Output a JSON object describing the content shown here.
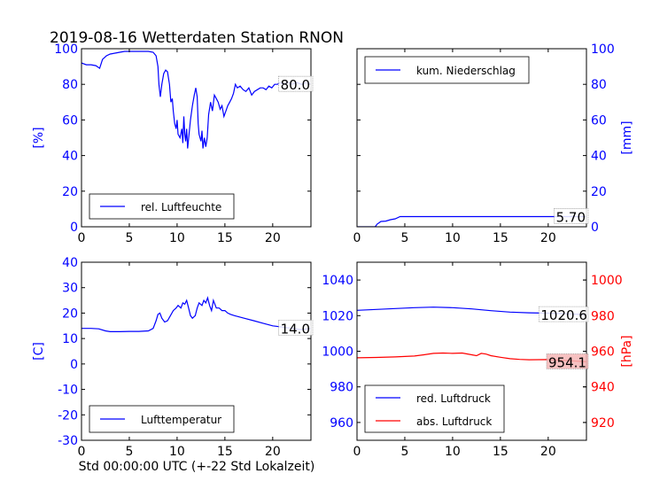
{
  "figure": {
    "title": "2019-08-16 Wetterdaten Station RNON",
    "xlabel": "Std 00:00:00 UTC (+-22 Std Lokalzeit)"
  },
  "colors": {
    "blue": "#0000ff",
    "red": "#ff0000",
    "axes": "#000000",
    "value_box_red": "#f4b6b6"
  },
  "chart_data": [
    {
      "id": "humidity",
      "type": "line",
      "xlim": [
        0,
        24
      ],
      "ylim": [
        0,
        100
      ],
      "xticks": [
        0,
        5,
        10,
        15,
        20
      ],
      "yticks": [
        0,
        20,
        40,
        60,
        80,
        100
      ],
      "ylabel": "[%]",
      "ylabel_side": "left",
      "legend": {
        "placement": "lower-left",
        "entries": [
          "rel. Luftfeuchte"
        ]
      },
      "series": [
        {
          "name": "rel. Luftfeuchte",
          "color": "#0000ff",
          "points": [
            [
              0,
              92
            ],
            [
              0.5,
              91
            ],
            [
              1,
              91
            ],
            [
              1.5,
              90.5
            ],
            [
              1.9,
              89
            ],
            [
              2.2,
              94
            ],
            [
              2.6,
              96
            ],
            [
              3,
              97
            ],
            [
              3.5,
              97.5
            ],
            [
              4,
              98
            ],
            [
              4.5,
              98.5
            ],
            [
              5,
              98.5
            ],
            [
              5.5,
              98.5
            ],
            [
              6,
              98.5
            ],
            [
              6.5,
              98.5
            ],
            [
              7,
              98.5
            ],
            [
              7.5,
              98
            ],
            [
              7.8,
              96
            ],
            [
              8,
              90
            ],
            [
              8.1,
              80
            ],
            [
              8.25,
              73
            ],
            [
              8.4,
              80
            ],
            [
              8.6,
              86
            ],
            [
              8.8,
              88
            ],
            [
              9,
              87
            ],
            [
              9.2,
              80
            ],
            [
              9.35,
              70
            ],
            [
              9.5,
              72
            ],
            [
              9.6,
              65
            ],
            [
              9.75,
              58
            ],
            [
              9.9,
              55
            ],
            [
              10,
              60
            ],
            [
              10.1,
              52
            ],
            [
              10.3,
              50
            ],
            [
              10.5,
              55
            ],
            [
              10.6,
              47
            ],
            [
              10.7,
              62
            ],
            [
              10.8,
              52
            ],
            [
              10.9,
              48
            ],
            [
              11,
              55
            ],
            [
              11.1,
              44
            ],
            [
              11.25,
              52
            ],
            [
              11.4,
              60
            ],
            [
              11.6,
              68
            ],
            [
              11.8,
              74
            ],
            [
              11.95,
              78
            ],
            [
              12.1,
              73
            ],
            [
              12.2,
              58
            ],
            [
              12.3,
              52
            ],
            [
              12.4,
              50
            ],
            [
              12.5,
              48
            ],
            [
              12.6,
              54
            ],
            [
              12.7,
              44
            ],
            [
              12.85,
              50
            ],
            [
              13,
              45
            ],
            [
              13.15,
              50
            ],
            [
              13.3,
              63
            ],
            [
              13.5,
              70
            ],
            [
              13.7,
              65
            ],
            [
              13.9,
              74
            ],
            [
              14.1,
              72
            ],
            [
              14.3,
              70
            ],
            [
              14.5,
              66
            ],
            [
              14.7,
              68
            ],
            [
              14.9,
              62
            ],
            [
              15.1,
              65
            ],
            [
              15.3,
              68
            ],
            [
              15.5,
              70
            ],
            [
              15.7,
              72
            ],
            [
              15.9,
              75
            ],
            [
              16.1,
              80
            ],
            [
              16.3,
              78
            ],
            [
              16.6,
              79
            ],
            [
              16.9,
              77
            ],
            [
              17.2,
              76
            ],
            [
              17.5,
              78
            ],
            [
              17.8,
              74
            ],
            [
              18.1,
              76
            ],
            [
              18.4,
              77
            ],
            [
              18.7,
              78
            ],
            [
              19,
              78
            ],
            [
              19.3,
              77
            ],
            [
              19.6,
              79
            ],
            [
              19.9,
              78
            ],
            [
              20.2,
              80
            ],
            [
              20.5,
              80
            ],
            [
              20.8,
              81
            ],
            [
              21.1,
              80
            ],
            [
              21.4,
              81
            ],
            [
              21.7,
              81
            ],
            [
              22,
              80
            ],
            [
              22.5,
              81
            ],
            [
              23,
              80
            ],
            [
              23.5,
              81
            ],
            [
              24,
              80
            ]
          ]
        }
      ],
      "value_labels": [
        {
          "text": "80.0",
          "y": 80,
          "style": "white"
        }
      ]
    },
    {
      "id": "precip",
      "type": "line",
      "xlim": [
        0,
        24
      ],
      "ylim": [
        0,
        100
      ],
      "xticks": [
        0,
        5,
        10,
        15,
        20
      ],
      "yticks": [
        0,
        20,
        40,
        60,
        80,
        100
      ],
      "ylabel": "[mm]",
      "ylabel_side": "right",
      "legend": {
        "placement": "upper-left",
        "entries": [
          "kum. Niederschlag"
        ]
      },
      "series": [
        {
          "name": "kum. Niederschlag",
          "color": "#0000ff",
          "points": [
            [
              0,
              0
            ],
            [
              1.9,
              0
            ],
            [
              2.1,
              1.5
            ],
            [
              2.5,
              3
            ],
            [
              3,
              3.2
            ],
            [
              3.5,
              4
            ],
            [
              4,
              4.5
            ],
            [
              4.5,
              5.7
            ],
            [
              6,
              5.7
            ],
            [
              10,
              5.7
            ],
            [
              15,
              5.7
            ],
            [
              20,
              5.7
            ],
            [
              24,
              5.7
            ]
          ]
        }
      ],
      "value_labels": [
        {
          "text": "5.70",
          "y": 5.7,
          "style": "white"
        }
      ]
    },
    {
      "id": "temperature",
      "type": "line",
      "xlim": [
        0,
        24
      ],
      "ylim": [
        -30,
        40
      ],
      "xticks": [
        0,
        5,
        10,
        15,
        20
      ],
      "yticks": [
        -30,
        -20,
        -10,
        0,
        10,
        20,
        30,
        40
      ],
      "ylabel": "[C]",
      "ylabel_side": "left",
      "legend": {
        "placement": "lower-left",
        "entries": [
          "Lufttemperatur"
        ]
      },
      "series": [
        {
          "name": "Lufttemperatur",
          "color": "#0000ff",
          "points": [
            [
              0,
              14
            ],
            [
              1,
              14
            ],
            [
              1.8,
              13.8
            ],
            [
              2.5,
              13
            ],
            [
              3,
              12.7
            ],
            [
              4,
              12.7
            ],
            [
              5,
              12.8
            ],
            [
              6,
              12.8
            ],
            [
              7,
              13
            ],
            [
              7.5,
              14
            ],
            [
              7.8,
              17
            ],
            [
              8,
              19.5
            ],
            [
              8.2,
              20
            ],
            [
              8.4,
              18
            ],
            [
              8.7,
              16.5
            ],
            [
              9,
              17
            ],
            [
              9.3,
              19
            ],
            [
              9.6,
              21
            ],
            [
              9.9,
              22
            ],
            [
              10.1,
              23
            ],
            [
              10.4,
              22
            ],
            [
              10.6,
              24
            ],
            [
              10.8,
              23.5
            ],
            [
              11,
              25
            ],
            [
              11.2,
              22
            ],
            [
              11.4,
              19
            ],
            [
              11.6,
              18
            ],
            [
              11.9,
              19
            ],
            [
              12.1,
              22
            ],
            [
              12.3,
              24
            ],
            [
              12.6,
              23
            ],
            [
              12.8,
              25
            ],
            [
              13,
              24
            ],
            [
              13.2,
              26
            ],
            [
              13.4,
              23
            ],
            [
              13.6,
              21
            ],
            [
              13.8,
              25
            ],
            [
              14.1,
              22
            ],
            [
              14.4,
              22
            ],
            [
              14.7,
              21
            ],
            [
              15,
              21
            ],
            [
              15.3,
              20
            ],
            [
              15.6,
              19.5
            ],
            [
              16,
              19
            ],
            [
              17,
              18
            ],
            [
              18,
              17
            ],
            [
              19,
              16
            ],
            [
              20,
              15
            ],
            [
              21,
              14.5
            ],
            [
              22,
              14
            ],
            [
              23,
              13.5
            ],
            [
              24,
              14
            ]
          ]
        }
      ],
      "value_labels": [
        {
          "text": "14.0",
          "y": 14,
          "style": "white"
        }
      ]
    },
    {
      "id": "pressure",
      "type": "line",
      "xlim": [
        0,
        24
      ],
      "ylim": [
        950,
        1050
      ],
      "ylim_right": [
        910,
        1010
      ],
      "xticks": [
        0,
        5,
        10,
        15,
        20
      ],
      "yticks": [
        960,
        980,
        1000,
        1020,
        1040
      ],
      "yticks_right": [
        920,
        940,
        960,
        980,
        1000
      ],
      "ylabel": "[hPa]",
      "ylabel_side": "right",
      "legend": {
        "placement": "lower-left",
        "entries": [
          "red. Luftdruck",
          "abs. Luftdruck"
        ]
      },
      "series": [
        {
          "name": "red. Luftdruck",
          "color": "#0000ff",
          "axis": "left",
          "points": [
            [
              0,
              1023
            ],
            [
              2,
              1023.5
            ],
            [
              4,
              1024
            ],
            [
              6,
              1024.5
            ],
            [
              8,
              1024.8
            ],
            [
              10,
              1024.5
            ],
            [
              12,
              1023.8
            ],
            [
              14,
              1022.8
            ],
            [
              16,
              1022
            ],
            [
              18,
              1021.6
            ],
            [
              20,
              1021.4
            ],
            [
              22,
              1021
            ],
            [
              24,
              1020.6
            ]
          ]
        },
        {
          "name": "abs. Luftdruck",
          "color": "#ff0000",
          "axis": "right",
          "points": [
            [
              0,
              956.3
            ],
            [
              2,
              956.5
            ],
            [
              4,
              956.8
            ],
            [
              6,
              957.3
            ],
            [
              7,
              958
            ],
            [
              8,
              958.8
            ],
            [
              9,
              959
            ],
            [
              10,
              958.8
            ],
            [
              11,
              959
            ],
            [
              12,
              958
            ],
            [
              12.5,
              957.5
            ],
            [
              13,
              958.8
            ],
            [
              13.5,
              958.4
            ],
            [
              14,
              957.5
            ],
            [
              15,
              956.6
            ],
            [
              16,
              955.8
            ],
            [
              17,
              955.4
            ],
            [
              18,
              955.2
            ],
            [
              20,
              955.3
            ],
            [
              22,
              954.8
            ],
            [
              24,
              954.1
            ]
          ]
        }
      ],
      "value_labels": [
        {
          "text": "1020.6",
          "y": 1020.6,
          "axis": "left",
          "style": "white"
        },
        {
          "text": "954.1",
          "y": 954.1,
          "axis": "right",
          "style": "red"
        }
      ]
    }
  ]
}
